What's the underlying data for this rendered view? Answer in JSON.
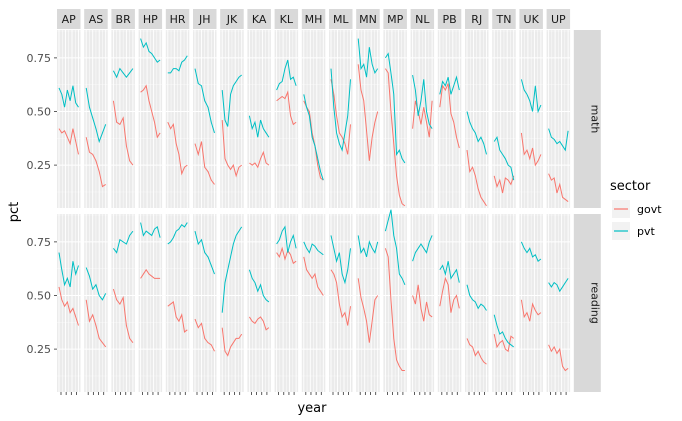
{
  "chart_data": {
    "type": "line",
    "facets": {
      "columns": [
        "AP",
        "AS",
        "BR",
        "HP",
        "HR",
        "JH",
        "JK",
        "KA",
        "KL",
        "MH",
        "ML",
        "MN",
        "MP",
        "NL",
        "PB",
        "RJ",
        "TN",
        "UK",
        "UP"
      ],
      "rows": [
        "math",
        "reading"
      ]
    },
    "xlabel": "year",
    "ylabel": "pct",
    "y_ticks": [
      0.25,
      0.5,
      0.75
    ],
    "y_tick_labels": [
      "0.25",
      "0.50",
      "0.75"
    ],
    "ylim": [
      0.05,
      0.88
    ],
    "legend": {
      "title": "sector",
      "entries": [
        {
          "name": "govt",
          "color": "#F8766D"
        },
        {
          "name": "pvt",
          "color": "#00BFC4"
        }
      ],
      "position": "right"
    },
    "series_colors": {
      "govt": "#F8766D",
      "pvt": "#00BFC4"
    },
    "grid": true,
    "data": {
      "math": {
        "govt": {
          "AP": [
            0.42,
            0.4,
            0.41,
            0.38,
            0.35,
            0.42,
            0.36,
            0.3
          ],
          "AS": [
            0.38,
            0.31,
            0.3,
            0.27,
            0.22,
            0.15,
            0.16
          ],
          "BR": [
            0.55,
            0.45,
            0.44,
            0.47,
            0.34,
            0.27,
            0.25
          ],
          "HP": [
            0.59,
            0.6,
            0.62,
            0.55,
            0.5,
            0.45,
            0.38,
            0.4
          ],
          "HR": [
            0.45,
            0.42,
            0.44,
            0.35,
            0.3,
            0.21,
            0.24,
            0.25
          ],
          "JH": [
            0.35,
            0.3,
            0.36,
            0.24,
            0.22,
            0.18,
            0.16
          ],
          "JK": [
            0.46,
            0.28,
            0.25,
            0.23,
            0.25,
            0.2,
            0.24,
            0.25
          ],
          "KA": [
            0.26,
            0.25,
            0.26,
            0.24,
            0.28,
            0.31,
            0.26,
            0.25
          ],
          "KL": [
            0.55,
            0.56,
            0.57,
            0.56,
            0.59,
            0.48,
            0.44,
            0.45
          ],
          "MH": [
            0.55,
            0.52,
            0.5,
            0.4,
            0.34,
            0.25,
            0.19,
            0.18
          ],
          "ML": [
            0.65,
            0.58,
            0.48,
            0.4,
            0.38,
            0.35,
            0.3,
            0.44
          ],
          "MN": [
            0.72,
            0.6,
            0.55,
            0.41,
            0.27,
            0.38,
            0.45,
            0.5
          ],
          "MP": [
            0.7,
            0.68,
            0.5,
            0.35,
            0.2,
            0.11,
            0.07,
            0.06
          ],
          "NL": [
            0.42,
            0.55,
            0.5,
            0.44,
            0.52,
            0.45,
            0.38,
            0.55
          ],
          "PB": [
            0.52,
            0.62,
            0.6,
            0.63,
            0.49,
            0.45,
            0.38,
            0.33
          ],
          "RJ": [
            0.32,
            0.22,
            0.24,
            0.2,
            0.14,
            0.1,
            0.08,
            0.06
          ],
          "TN": [
            0.2,
            0.15,
            0.18,
            0.12,
            0.19,
            0.18,
            0.16,
            0.2
          ],
          "UK": [
            0.4,
            0.3,
            0.32,
            0.28,
            0.33,
            0.25,
            0.27,
            0.3
          ],
          "UP": [
            0.21,
            0.18,
            0.19,
            0.12,
            0.16,
            0.1,
            0.09,
            0.08
          ]
        },
        "pvt": {
          "AP": [
            0.61,
            0.58,
            0.52,
            0.6,
            0.55,
            0.62,
            0.54,
            0.52
          ],
          "AS": [
            0.61,
            0.52,
            0.47,
            0.42,
            0.36,
            0.4,
            0.44
          ],
          "BR": [
            0.69,
            0.66,
            0.7,
            0.68,
            0.66,
            0.68,
            0.7
          ],
          "HP": [
            0.84,
            0.8,
            0.82,
            0.78,
            0.77,
            0.75,
            0.73,
            0.74
          ],
          "HR": [
            0.68,
            0.68,
            0.7,
            0.7,
            0.69,
            0.73,
            0.74,
            0.76
          ],
          "JH": [
            0.7,
            0.63,
            0.62,
            0.55,
            0.52,
            0.45,
            0.4
          ],
          "JK": [
            0.6,
            0.46,
            0.43,
            0.58,
            0.62,
            0.64,
            0.66,
            0.67
          ],
          "KA": [
            0.48,
            0.42,
            0.45,
            0.38,
            0.46,
            0.42,
            0.4,
            0.38
          ],
          "KL": [
            0.6,
            0.63,
            0.64,
            0.7,
            0.74,
            0.65,
            0.66,
            0.62
          ],
          "MH": [
            0.58,
            0.52,
            0.48,
            0.38,
            0.34,
            0.28,
            0.22,
            0.18
          ],
          "ML": [
            0.7,
            0.52,
            0.4,
            0.35,
            0.32,
            0.4,
            0.48,
            0.65
          ],
          "MN": [
            0.84,
            0.7,
            0.72,
            0.66,
            0.8,
            0.72,
            0.68,
            0.7
          ],
          "MP": [
            0.75,
            0.77,
            0.68,
            0.58,
            0.3,
            0.32,
            0.28,
            0.26
          ],
          "NL": [
            0.67,
            0.6,
            0.48,
            0.55,
            0.65,
            0.5,
            0.44,
            0.42
          ],
          "PB": [
            0.58,
            0.64,
            0.62,
            0.66,
            0.58,
            0.62,
            0.66,
            0.6
          ],
          "RJ": [
            0.5,
            0.45,
            0.42,
            0.4,
            0.36,
            0.38,
            0.35,
            0.3
          ],
          "TN": [
            0.36,
            0.38,
            0.32,
            0.3,
            0.28,
            0.25,
            0.24,
            0.18
          ],
          "UK": [
            0.65,
            0.6,
            0.58,
            0.55,
            0.5,
            0.62,
            0.5,
            0.53
          ],
          "UP": [
            0.42,
            0.38,
            0.37,
            0.35,
            0.36,
            0.34,
            0.32,
            0.41
          ]
        }
      },
      "reading": {
        "govt": {
          "AP": [
            0.54,
            0.48,
            0.45,
            0.47,
            0.42,
            0.44,
            0.4,
            0.36
          ],
          "AS": [
            0.48,
            0.38,
            0.41,
            0.36,
            0.3,
            0.28,
            0.26
          ],
          "BR": [
            0.53,
            0.48,
            0.46,
            0.49,
            0.36,
            0.3,
            0.28
          ],
          "HP": [
            0.58,
            0.6,
            0.62,
            0.6,
            0.59,
            0.58,
            0.58,
            0.58
          ],
          "HR": [
            0.45,
            0.46,
            0.47,
            0.4,
            0.38,
            0.41,
            0.33,
            0.34
          ],
          "JH": [
            0.39,
            0.35,
            0.37,
            0.3,
            0.28,
            0.27,
            0.24
          ],
          "JK": [
            0.35,
            0.24,
            0.22,
            0.26,
            0.28,
            0.3,
            0.3,
            0.32
          ],
          "KA": [
            0.4,
            0.38,
            0.37,
            0.39,
            0.4,
            0.38,
            0.34,
            0.35
          ],
          "KL": [
            0.7,
            0.68,
            0.72,
            0.67,
            0.71,
            0.69,
            0.65,
            0.66
          ],
          "MH": [
            0.68,
            0.62,
            0.6,
            0.58,
            0.6,
            0.54,
            0.52,
            0.5
          ],
          "ML": [
            0.62,
            0.6,
            0.56,
            0.46,
            0.4,
            0.42,
            0.36,
            0.45
          ],
          "MN": [
            0.58,
            0.49,
            0.44,
            0.38,
            0.28,
            0.38,
            0.48,
            0.5
          ],
          "MP": [
            0.72,
            0.68,
            0.48,
            0.3,
            0.2,
            0.17,
            0.15,
            0.15
          ],
          "NL": [
            0.5,
            0.46,
            0.55,
            0.44,
            0.38,
            0.47,
            0.41,
            0.4
          ],
          "PB": [
            0.45,
            0.52,
            0.58,
            0.55,
            0.42,
            0.48,
            0.5,
            0.44
          ],
          "RJ": [
            0.3,
            0.27,
            0.26,
            0.22,
            0.24,
            0.21,
            0.19,
            0.18
          ],
          "TN": [
            0.32,
            0.26,
            0.28,
            0.29,
            0.25,
            0.24,
            0.31,
            0.3
          ],
          "UK": [
            0.48,
            0.4,
            0.42,
            0.38,
            0.46,
            0.43,
            0.41,
            0.42
          ],
          "UP": [
            0.27,
            0.24,
            0.26,
            0.23,
            0.25,
            0.17,
            0.15,
            0.16
          ]
        },
        "pvt": {
          "AP": [
            0.7,
            0.62,
            0.55,
            0.58,
            0.54,
            0.66,
            0.6,
            0.64
          ],
          "AS": [
            0.63,
            0.59,
            0.53,
            0.55,
            0.5,
            0.48,
            0.51
          ],
          "BR": [
            0.72,
            0.7,
            0.76,
            0.75,
            0.74,
            0.78,
            0.8
          ],
          "HP": [
            0.84,
            0.78,
            0.8,
            0.79,
            0.78,
            0.81,
            0.82,
            0.77
          ],
          "HR": [
            0.74,
            0.75,
            0.77,
            0.8,
            0.81,
            0.83,
            0.82,
            0.84
          ],
          "JH": [
            0.8,
            0.74,
            0.76,
            0.7,
            0.68,
            0.64,
            0.6
          ],
          "JK": [
            0.42,
            0.56,
            0.62,
            0.68,
            0.74,
            0.78,
            0.8,
            0.82
          ],
          "KA": [
            0.62,
            0.58,
            0.56,
            0.52,
            0.55,
            0.5,
            0.48,
            0.47
          ],
          "KL": [
            0.74,
            0.76,
            0.8,
            0.82,
            0.7,
            0.75,
            0.78,
            0.72
          ],
          "MH": [
            0.75,
            0.72,
            0.7,
            0.74,
            0.73,
            0.71,
            0.7,
            0.69
          ],
          "ML": [
            0.78,
            0.72,
            0.66,
            0.7,
            0.6,
            0.56,
            0.62,
            0.72
          ],
          "MN": [
            0.78,
            0.7,
            0.72,
            0.68,
            0.75,
            0.72,
            0.7,
            0.75
          ],
          "MP": [
            0.8,
            0.85,
            0.9,
            0.78,
            0.72,
            0.6,
            0.58,
            0.55
          ],
          "NL": [
            0.66,
            0.7,
            0.72,
            0.74,
            0.72,
            0.7,
            0.75,
            0.78
          ],
          "PB": [
            0.62,
            0.64,
            0.6,
            0.66,
            0.58,
            0.6,
            0.62,
            0.56
          ],
          "RJ": [
            0.55,
            0.5,
            0.48,
            0.47,
            0.44,
            0.46,
            0.45,
            0.43
          ],
          "TN": [
            0.41,
            0.36,
            0.32,
            0.33,
            0.3,
            0.28,
            0.27,
            0.26
          ],
          "UK": [
            0.75,
            0.72,
            0.7,
            0.72,
            0.68,
            0.69,
            0.66,
            0.67
          ],
          "UP": [
            0.56,
            0.54,
            0.56,
            0.55,
            0.52,
            0.54,
            0.56,
            0.58
          ]
        }
      }
    }
  }
}
